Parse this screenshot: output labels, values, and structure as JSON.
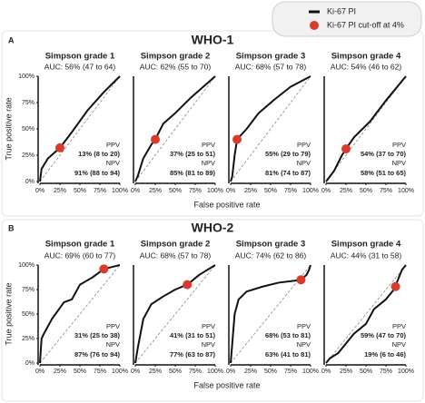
{
  "legend": {
    "items": [
      {
        "label": "Ki-67 PI",
        "color": "#111111"
      },
      {
        "label": "Ki-67 PI cut-off at 4%",
        "color": "#d93a2b"
      }
    ]
  },
  "panels": [
    {
      "label": "A",
      "title": "WHO-1",
      "x_label": "False positive rate",
      "y_label": "True positive rate"
    },
    {
      "label": "B",
      "title": "WHO-2",
      "x_label": "False positive rate",
      "y_label": "True positive rate"
    }
  ],
  "chart_data": [
    {
      "type": "line",
      "title": "Simpson grade 1",
      "subtitle": "AUC: 56% (47 to 64)",
      "x": [
        0,
        2,
        10,
        25,
        40,
        60,
        80,
        100
      ],
      "series": [
        {
          "color": "#111111",
          "values": [
            0,
            12,
            22,
            32,
            47,
            68,
            85,
            100
          ]
        }
      ],
      "cutoff": {
        "x": 25,
        "y": 32,
        "color": "#d93a2b"
      },
      "annotations": {
        "ppv_label": "PPV",
        "ppv": "13% (8 to 20)",
        "npv_label": "NPV",
        "npv": "91% (88 to 94)"
      },
      "xlim": [
        0,
        100
      ],
      "ylim": [
        0,
        100
      ],
      "xticks": [
        {
          "value": 0,
          "label": "0%"
        },
        {
          "value": 25,
          "label": "25%"
        },
        {
          "value": 50,
          "label": "50%"
        },
        {
          "value": 75,
          "label": "75%"
        },
        {
          "value": 100,
          "label": "100%"
        }
      ],
      "yticks": [
        {
          "value": 0,
          "label": "0%"
        },
        {
          "value": 25,
          "label": "25%"
        },
        {
          "value": 50,
          "label": "50%"
        },
        {
          "value": 75,
          "label": "75%"
        },
        {
          "value": 100,
          "label": "100%"
        }
      ]
    },
    {
      "type": "line",
      "title": "Simpson grade 2",
      "subtitle": "AUC: 62% (55 to 70)",
      "x": [
        0,
        3,
        10,
        20,
        25,
        35,
        50,
        70,
        100
      ],
      "series": [
        {
          "color": "#111111",
          "values": [
            0,
            5,
            22,
            35,
            40,
            55,
            65,
            80,
            100
          ]
        }
      ],
      "cutoff": {
        "x": 25,
        "y": 40,
        "color": "#d93a2b"
      },
      "annotations": {
        "ppv_label": "PPV",
        "ppv": "37% (25 to 51)",
        "npv_label": "NPV",
        "npv": "85% (81 to 89)"
      },
      "xlim": [
        0,
        100
      ],
      "ylim": [
        0,
        100
      ],
      "xticks": [
        {
          "value": 0,
          "label": "0%"
        },
        {
          "value": 25,
          "label": "25%"
        },
        {
          "value": 50,
          "label": "50%"
        },
        {
          "value": 75,
          "label": "75%"
        },
        {
          "value": 100,
          "label": "100%"
        }
      ]
    },
    {
      "type": "line",
      "title": "Simpson grade 3",
      "subtitle": "AUC: 68% (57 to 78)",
      "x": [
        0,
        2,
        5,
        8,
        20,
        35,
        55,
        75,
        100
      ],
      "series": [
        {
          "color": "#111111",
          "values": [
            0,
            5,
            25,
            40,
            50,
            65,
            78,
            90,
            100
          ]
        }
      ],
      "cutoff": {
        "x": 8,
        "y": 40,
        "color": "#d93a2b"
      },
      "annotations": {
        "ppv_label": "PPV",
        "ppv": "55% (29 to 79)",
        "npv_label": "NPV",
        "npv": "81% (74 to 87)"
      },
      "xlim": [
        0,
        100
      ],
      "ylim": [
        0,
        100
      ],
      "xticks": [
        {
          "value": 0,
          "label": "0%"
        },
        {
          "value": 25,
          "label": "25%"
        },
        {
          "value": 50,
          "label": "50%"
        },
        {
          "value": 75,
          "label": "75%"
        },
        {
          "value": 100,
          "label": "100%"
        }
      ]
    },
    {
      "type": "line",
      "title": "Simpson grade 4",
      "subtitle": "AUC: 54% (46 to 62)",
      "x": [
        0,
        10,
        20,
        25,
        35,
        55,
        75,
        100
      ],
      "series": [
        {
          "color": "#111111",
          "values": [
            0,
            10,
            25,
            31,
            42,
            57,
            77,
            100
          ]
        }
      ],
      "cutoff": {
        "x": 25,
        "y": 31,
        "color": "#d93a2b"
      },
      "annotations": {
        "ppv_label": "PPV",
        "ppv": "54% (37 to 70)",
        "npv_label": "NPV",
        "npv": "58% (51 to 65)"
      },
      "xlim": [
        0,
        100
      ],
      "ylim": [
        0,
        100
      ],
      "xticks": [
        {
          "value": 0,
          "label": "0%"
        },
        {
          "value": 25,
          "label": "25%"
        },
        {
          "value": 50,
          "label": "50%"
        },
        {
          "value": 75,
          "label": "75%"
        },
        {
          "value": 100,
          "label": "100%"
        }
      ]
    },
    {
      "type": "line",
      "title": "Simpson grade 1",
      "subtitle": "AUC: 69% (60 to 77)",
      "x": [
        0,
        2,
        5,
        15,
        30,
        40,
        50,
        65,
        80,
        90,
        100
      ],
      "series": [
        {
          "color": "#111111",
          "values": [
            0,
            25,
            30,
            45,
            62,
            65,
            80,
            87,
            96,
            98,
            100
          ]
        }
      ],
      "cutoff": {
        "x": 80,
        "y": 96,
        "color": "#d93a2b"
      },
      "annotations": {
        "ppv_label": "PPV",
        "ppv": "31% (25 to 38)",
        "npv_label": "NPV",
        "npv": "87% (76 to 94)"
      },
      "xlim": [
        0,
        100
      ],
      "ylim": [
        0,
        100
      ],
      "xticks": [
        {
          "value": 0,
          "label": "0%"
        },
        {
          "value": 25,
          "label": "25%"
        },
        {
          "value": 50,
          "label": "50%"
        },
        {
          "value": 75,
          "label": "75%"
        },
        {
          "value": 100,
          "label": "100%"
        }
      ],
      "yticks": [
        {
          "value": 0,
          "label": "0%"
        },
        {
          "value": 25,
          "label": "25%"
        },
        {
          "value": 50,
          "label": "50%"
        },
        {
          "value": 75,
          "label": "75%"
        },
        {
          "value": 100,
          "label": "100%"
        }
      ]
    },
    {
      "type": "line",
      "title": "Simpson grade 2",
      "subtitle": "AUC: 68% (57 to 78)",
      "x": [
        0,
        3,
        10,
        20,
        35,
        50,
        65,
        80,
        100
      ],
      "series": [
        {
          "color": "#111111",
          "values": [
            0,
            15,
            45,
            60,
            68,
            75,
            80,
            90,
            100
          ]
        }
      ],
      "cutoff": {
        "x": 65,
        "y": 80,
        "color": "#d93a2b"
      },
      "annotations": {
        "ppv_label": "PPV",
        "ppv": "41% (31 to 51)",
        "npv_label": "NPV",
        "npv": "77% (63 to 87)"
      },
      "xlim": [
        0,
        100
      ],
      "ylim": [
        0,
        100
      ],
      "xticks": [
        {
          "value": 0,
          "label": "0%"
        },
        {
          "value": 25,
          "label": "25%"
        },
        {
          "value": 50,
          "label": "50%"
        },
        {
          "value": 75,
          "label": "75%"
        },
        {
          "value": 100,
          "label": "100%"
        }
      ]
    },
    {
      "type": "line",
      "title": "Simpson grade 3",
      "subtitle": "AUC: 74% (62 to 86)",
      "x": [
        0,
        2,
        5,
        10,
        20,
        40,
        60,
        80,
        88,
        95,
        98,
        100
      ],
      "series": [
        {
          "color": "#111111",
          "values": [
            0,
            20,
            50,
            65,
            73,
            78,
            82,
            84,
            85,
            90,
            95,
            100
          ]
        }
      ],
      "cutoff": {
        "x": 88,
        "y": 85,
        "color": "#d93a2b"
      },
      "annotations": {
        "ppv_label": "PPV",
        "ppv": "68% (53 to 81)",
        "npv_label": "NPV",
        "npv": "63% (41 to 81)"
      },
      "xlim": [
        0,
        100
      ],
      "ylim": [
        0,
        100
      ],
      "xticks": [
        {
          "value": 0,
          "label": "0%"
        },
        {
          "value": 25,
          "label": "25%"
        },
        {
          "value": 50,
          "label": "50%"
        },
        {
          "value": 75,
          "label": "75%"
        },
        {
          "value": 100,
          "label": "100%"
        }
      ]
    },
    {
      "type": "line",
      "title": "Simpson grade 4",
      "subtitle": "AUC: 44% (31 to 58)",
      "x": [
        0,
        5,
        15,
        25,
        35,
        50,
        60,
        75,
        85,
        90,
        95,
        100
      ],
      "series": [
        {
          "color": "#111111",
          "values": [
            0,
            5,
            10,
            20,
            30,
            40,
            55,
            65,
            75,
            85,
            95,
            100
          ]
        }
      ],
      "cutoff": {
        "x": 87,
        "y": 78,
        "color": "#d93a2b"
      },
      "annotations": {
        "ppv_label": "PPV",
        "ppv": "59% (47 to 70)",
        "npv_label": "NPV",
        "npv": "19% (6 to 46)"
      },
      "xlim": [
        0,
        100
      ],
      "ylim": [
        0,
        100
      ],
      "xticks": [
        {
          "value": 0,
          "label": "0%"
        },
        {
          "value": 25,
          "label": "25%"
        },
        {
          "value": 50,
          "label": "50%"
        },
        {
          "value": 75,
          "label": "75%"
        },
        {
          "value": 100,
          "label": "100%"
        }
      ]
    }
  ]
}
